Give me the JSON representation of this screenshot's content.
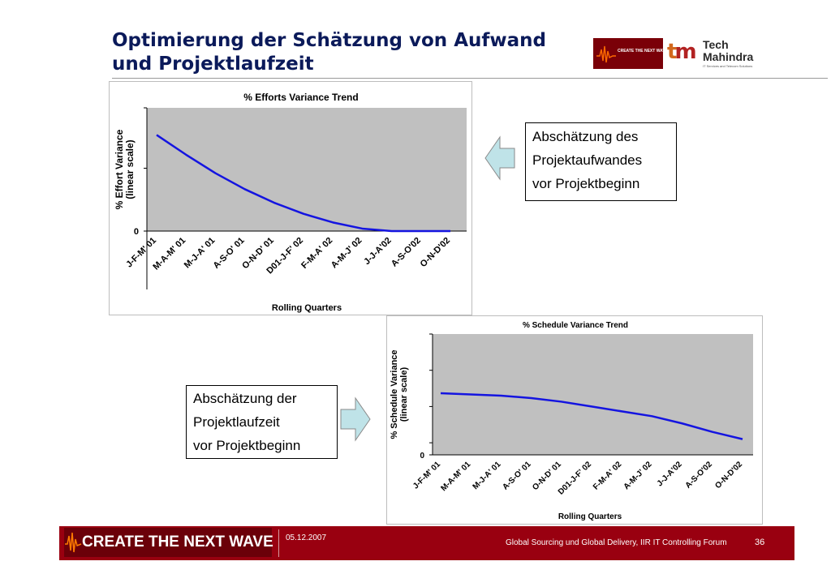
{
  "header": {
    "title_line1": "Optimierung der Schätzung von Aufwand",
    "title_line2": "und Projektlaufzeit",
    "logo_wave_text": "CREATE THE NEXT WAVE",
    "logo_tm_tech": "Tech",
    "logo_tm_mahindra": "Mahindra",
    "logo_tm_tagline": "IT Services and Telecom Solutions"
  },
  "notes": {
    "effort": [
      "Abschätzung des",
      "Projektaufwandes",
      "vor Projektbeginn"
    ],
    "schedule": [
      "Abschätzung der",
      "Projektlaufzeit",
      "vor Projektbeginn"
    ]
  },
  "footer": {
    "brand": "CREATE THE NEXT WAVE",
    "date": "05.12.2007",
    "event": "Global Sourcing und Global Delivery, IIR IT Controlling Forum",
    "page": "36"
  },
  "colors": {
    "line": "#1414e0",
    "plot_bg": "#c0c0c0",
    "arrow_fill": "#bfe3e8",
    "footer_bg": "#990010"
  },
  "chart_data": [
    {
      "type": "line",
      "title": "% Efforts Variance Trend",
      "xlabel": "Rolling Quarters",
      "ylabel": "% Effort Variance\n(linear scale)",
      "ytick_labels": [
        "0"
      ],
      "ylim": [
        0,
        100
      ],
      "grid": false,
      "legend": "none",
      "categories": [
        "J-F-M' 01",
        "M-A-M' 01",
        "M-J-A' 01",
        "A-S-O' 01",
        "O-N-D' 01",
        "D01-J-F' 02",
        "F-M-A' 02",
        "A-M-J' 02",
        "J-J-A'02",
        "A-S-O'02",
        "O-N-D'02"
      ],
      "series": [
        {
          "values": [
            78,
            62,
            47,
            34,
            23,
            14,
            7,
            2,
            0,
            0,
            0
          ]
        }
      ]
    },
    {
      "type": "line",
      "title": "% Schedule Variance Trend",
      "xlabel": "Rolling Quarters",
      "ylabel": "% Schedule Variance\n(linear scale)",
      "ytick_labels": [
        "0"
      ],
      "ylim": [
        0,
        100
      ],
      "grid": false,
      "legend": "none",
      "categories": [
        "J-F-M' 01",
        "M-A-M' 01",
        "M-J-A' 01",
        "A-S-O' 01",
        "O-N-D' 01",
        "D01-J-F' 02",
        "F-M-A' 02",
        "A-M-J' 02",
        "J-J-A'02",
        "A-S-O'02",
        "O-N-D'02"
      ],
      "series": [
        {
          "values": [
            51,
            50,
            49,
            47,
            44,
            40,
            36,
            32,
            26,
            19,
            13
          ]
        }
      ]
    }
  ]
}
